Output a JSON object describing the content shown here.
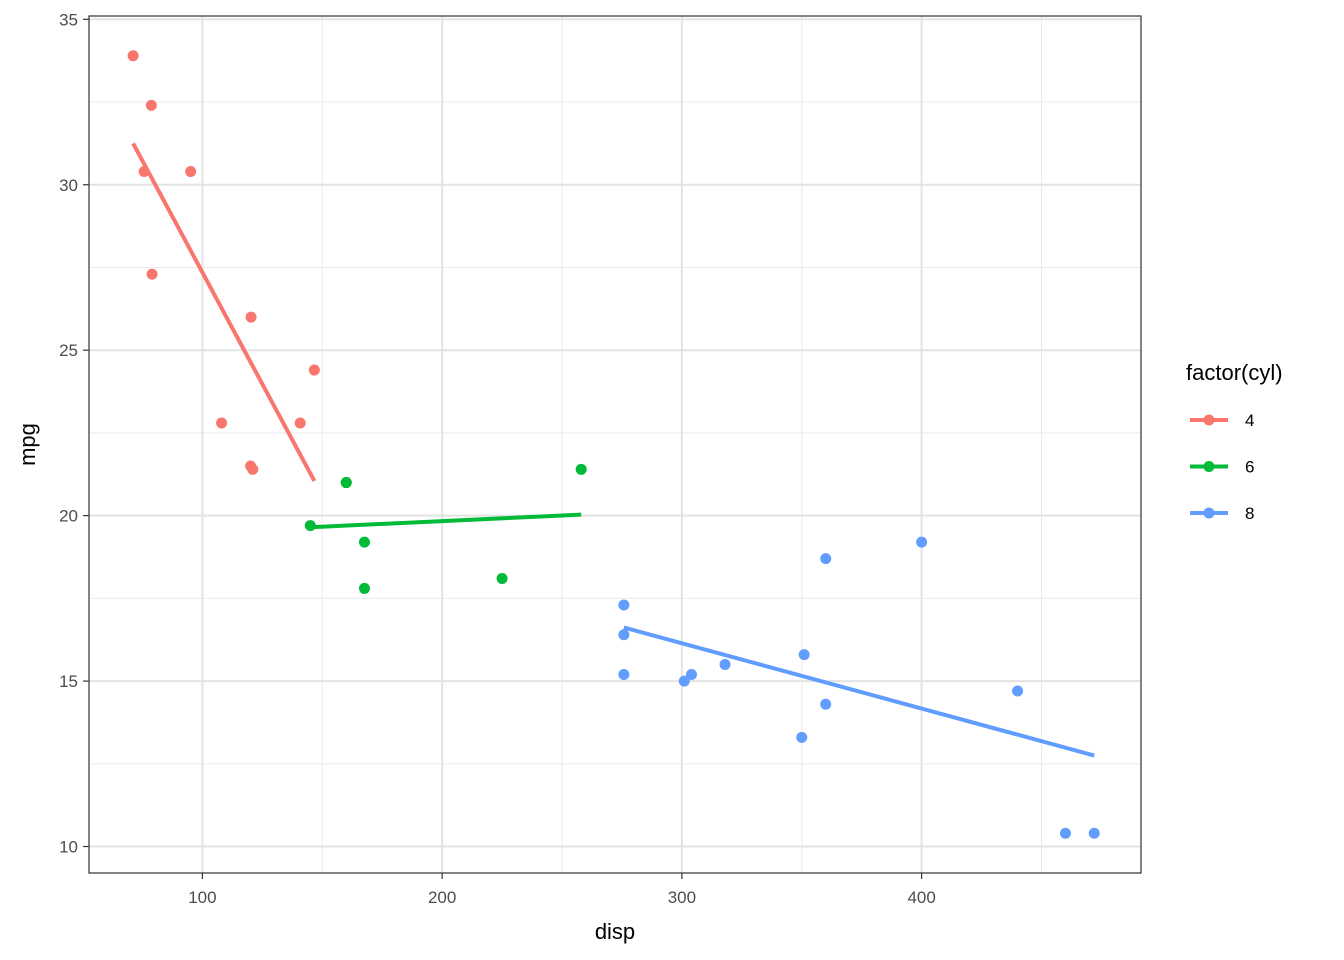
{
  "chart_data": {
    "type": "scatter",
    "xlabel": "disp",
    "ylabel": "mpg",
    "xlim": [
      52.7,
      491.5
    ],
    "ylim": [
      9.2,
      35.1
    ],
    "x_ticks": [
      100,
      200,
      300,
      400
    ],
    "y_ticks": [
      10,
      15,
      20,
      25,
      30,
      35
    ],
    "x_minor_ticks": [
      150,
      250,
      350,
      450
    ],
    "y_minor_ticks": [
      12.5,
      17.5,
      22.5,
      27.5,
      32.5
    ],
    "grid": true,
    "legend": {
      "title": "factor(cyl)",
      "position": "right"
    },
    "series": [
      {
        "name": "4",
        "color": "#F8766D",
        "points": [
          {
            "x": 108.0,
            "y": 22.8
          },
          {
            "x": 146.7,
            "y": 24.4
          },
          {
            "x": 140.8,
            "y": 22.8
          },
          {
            "x": 78.7,
            "y": 32.4
          },
          {
            "x": 75.7,
            "y": 30.4
          },
          {
            "x": 71.1,
            "y": 33.9
          },
          {
            "x": 120.1,
            "y": 21.5
          },
          {
            "x": 79.0,
            "y": 27.3
          },
          {
            "x": 120.3,
            "y": 26.0
          },
          {
            "x": 95.1,
            "y": 30.4
          },
          {
            "x": 121.0,
            "y": 21.4
          }
        ],
        "fit": [
          {
            "x": 71.1,
            "y": 31.25
          },
          {
            "x": 146.7,
            "y": 21.05
          }
        ]
      },
      {
        "name": "6",
        "color": "#00BA38",
        "points": [
          {
            "x": 160.0,
            "y": 21.0
          },
          {
            "x": 160.0,
            "y": 21.0
          },
          {
            "x": 258.0,
            "y": 21.4
          },
          {
            "x": 225.0,
            "y": 18.1
          },
          {
            "x": 167.6,
            "y": 19.2
          },
          {
            "x": 167.6,
            "y": 17.8
          },
          {
            "x": 145.0,
            "y": 19.7
          }
        ],
        "fit": [
          {
            "x": 145.0,
            "y": 19.65
          },
          {
            "x": 258.0,
            "y": 20.03
          }
        ]
      },
      {
        "name": "8",
        "color": "#619CFF",
        "points": [
          {
            "x": 360.0,
            "y": 18.7
          },
          {
            "x": 360.0,
            "y": 14.3
          },
          {
            "x": 275.8,
            "y": 16.4
          },
          {
            "x": 275.8,
            "y": 17.3
          },
          {
            "x": 275.8,
            "y": 15.2
          },
          {
            "x": 472.0,
            "y": 10.4
          },
          {
            "x": 460.0,
            "y": 10.4
          },
          {
            "x": 440.0,
            "y": 14.7
          },
          {
            "x": 318.0,
            "y": 15.5
          },
          {
            "x": 304.0,
            "y": 15.2
          },
          {
            "x": 350.0,
            "y": 13.3
          },
          {
            "x": 400.0,
            "y": 19.2
          },
          {
            "x": 351.0,
            "y": 15.8
          },
          {
            "x": 301.0,
            "y": 15.0
          }
        ],
        "fit": [
          {
            "x": 275.8,
            "y": 16.62
          },
          {
            "x": 472.0,
            "y": 12.75
          }
        ]
      }
    ]
  }
}
